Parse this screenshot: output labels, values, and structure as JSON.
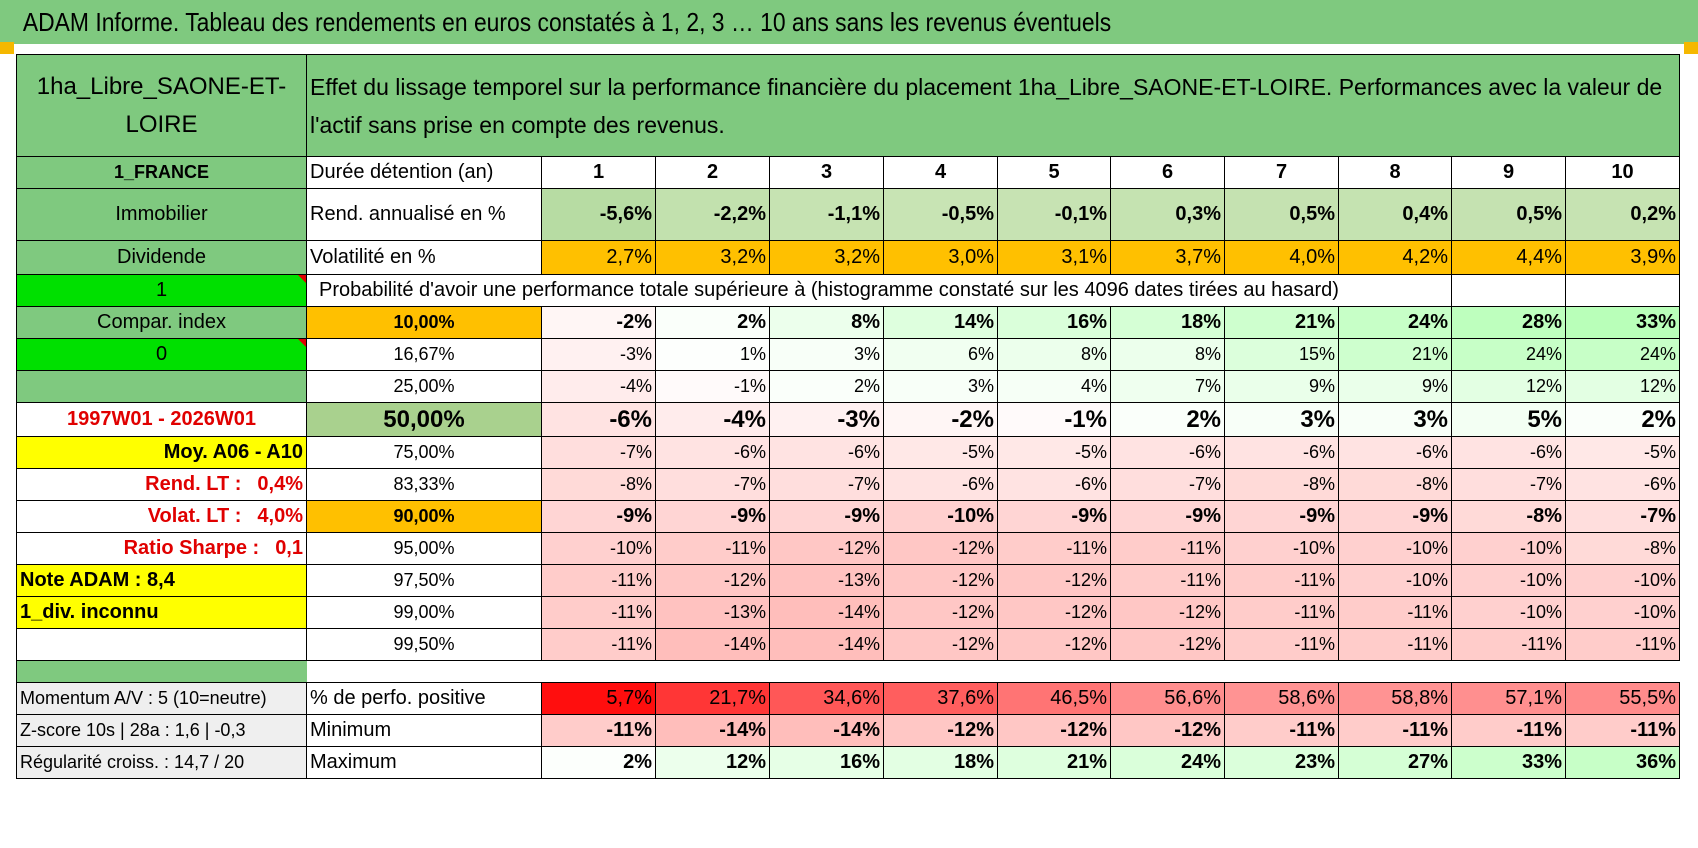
{
  "title": "ADAM Informe. Tableau des rendements en euros constatés à 1, 2, 3 … 10 ans sans les revenus éventuels",
  "header": {
    "asset": "1ha_Libre_SAONE-ET-LOIRE",
    "description": "Effet du lissage temporel sur la performance financière du placement 1ha_Libre_SAONE-ET-LOIRE. Performances avec la valeur de l'actif sans prise en compte des revenus."
  },
  "labels": {
    "country": "1_FRANCE",
    "category": "Immobilier",
    "dividend": "Dividende",
    "flag1": "1",
    "compar": "Compar. index",
    "flag0": "0",
    "period": "1997W01 - 2026W01",
    "moy": "Moy. A06 - A10",
    "rend_lt_label": "Rend. LT :",
    "rend_lt_value": "0,4%",
    "volat_lt_label": "Volat. LT :",
    "volat_lt_value": "4,0%",
    "sharpe_label": "Ratio Sharpe :",
    "sharpe_value": "0,1",
    "note": "Note ADAM : 8,4",
    "div": "1_div. inconnu",
    "momentum": "Momentum A/V : 5 (10=neutre)",
    "zscore": "Z-score 10s | 28a : 1,6 | -0,3",
    "regularite": "Régularité croiss. : 14,7 / 20"
  },
  "row_labels": {
    "duree": "Durée détention (an)",
    "rend": "Rend. annualisé en %",
    "volat": "Volatilité en %",
    "proba": "Probabilité d'avoir une performance totale supérieure à (histogramme constaté sur les 4096 dates tirées au hasard)",
    "pct_pos": "% de perfo. positive",
    "minimum": "Minimum",
    "maximum": "Maximum"
  },
  "years": [
    "1",
    "2",
    "3",
    "4",
    "5",
    "6",
    "7",
    "8",
    "9",
    "10"
  ],
  "rend": [
    "-5,6%",
    "-2,2%",
    "-1,1%",
    "-0,5%",
    "-0,1%",
    "0,3%",
    "0,5%",
    "0,4%",
    "0,5%",
    "0,2%"
  ],
  "volat": [
    "2,7%",
    "3,2%",
    "3,2%",
    "3,0%",
    "3,1%",
    "3,7%",
    "4,0%",
    "4,2%",
    "4,4%",
    "3,9%"
  ],
  "percentiles": [
    {
      "p": "10,00%",
      "values": [
        "-2%",
        "2%",
        "8%",
        "14%",
        "16%",
        "18%",
        "21%",
        "24%",
        "28%",
        "33%"
      ]
    },
    {
      "p": "16,67%",
      "values": [
        "-3%",
        "1%",
        "3%",
        "6%",
        "8%",
        "8%",
        "15%",
        "21%",
        "24%",
        "24%"
      ]
    },
    {
      "p": "25,00%",
      "values": [
        "-4%",
        "-1%",
        "2%",
        "3%",
        "4%",
        "7%",
        "9%",
        "9%",
        "12%",
        "12%"
      ]
    },
    {
      "p": "50,00%",
      "values": [
        "-6%",
        "-4%",
        "-3%",
        "-2%",
        "-1%",
        "2%",
        "3%",
        "3%",
        "5%",
        "2%"
      ]
    },
    {
      "p": "75,00%",
      "values": [
        "-7%",
        "-6%",
        "-6%",
        "-5%",
        "-5%",
        "-6%",
        "-6%",
        "-6%",
        "-6%",
        "-5%"
      ]
    },
    {
      "p": "83,33%",
      "values": [
        "-8%",
        "-7%",
        "-7%",
        "-6%",
        "-6%",
        "-7%",
        "-8%",
        "-8%",
        "-7%",
        "-6%"
      ]
    },
    {
      "p": "90,00%",
      "values": [
        "-9%",
        "-9%",
        "-9%",
        "-10%",
        "-9%",
        "-9%",
        "-9%",
        "-9%",
        "-8%",
        "-7%"
      ]
    },
    {
      "p": "95,00%",
      "values": [
        "-10%",
        "-11%",
        "-12%",
        "-12%",
        "-11%",
        "-11%",
        "-10%",
        "-10%",
        "-10%",
        "-8%"
      ]
    },
    {
      "p": "97,50%",
      "values": [
        "-11%",
        "-12%",
        "-13%",
        "-12%",
        "-12%",
        "-11%",
        "-11%",
        "-10%",
        "-10%",
        "-10%"
      ]
    },
    {
      "p": "99,00%",
      "values": [
        "-11%",
        "-13%",
        "-14%",
        "-12%",
        "-12%",
        "-12%",
        "-11%",
        "-11%",
        "-10%",
        "-10%"
      ]
    },
    {
      "p": "99,50%",
      "values": [
        "-11%",
        "-14%",
        "-14%",
        "-12%",
        "-12%",
        "-12%",
        "-11%",
        "-11%",
        "-11%",
        "-11%"
      ]
    }
  ],
  "pct_pos": [
    "5,7%",
    "21,7%",
    "34,6%",
    "37,6%",
    "46,5%",
    "56,6%",
    "58,6%",
    "58,8%",
    "57,1%",
    "55,5%"
  ],
  "minimum": [
    "-11%",
    "-14%",
    "-14%",
    "-12%",
    "-12%",
    "-12%",
    "-11%",
    "-11%",
    "-11%",
    "-11%"
  ],
  "maximum": [
    "2%",
    "12%",
    "16%",
    "18%",
    "21%",
    "24%",
    "23%",
    "27%",
    "33%",
    "36%"
  ],
  "colors": {
    "header_green": "#7fc97f",
    "light_green": "#a9d18e",
    "bright_green": "#00e000",
    "yellow": "#ffff00",
    "orange": "#ffc000",
    "label_red": "#e00000"
  }
}
